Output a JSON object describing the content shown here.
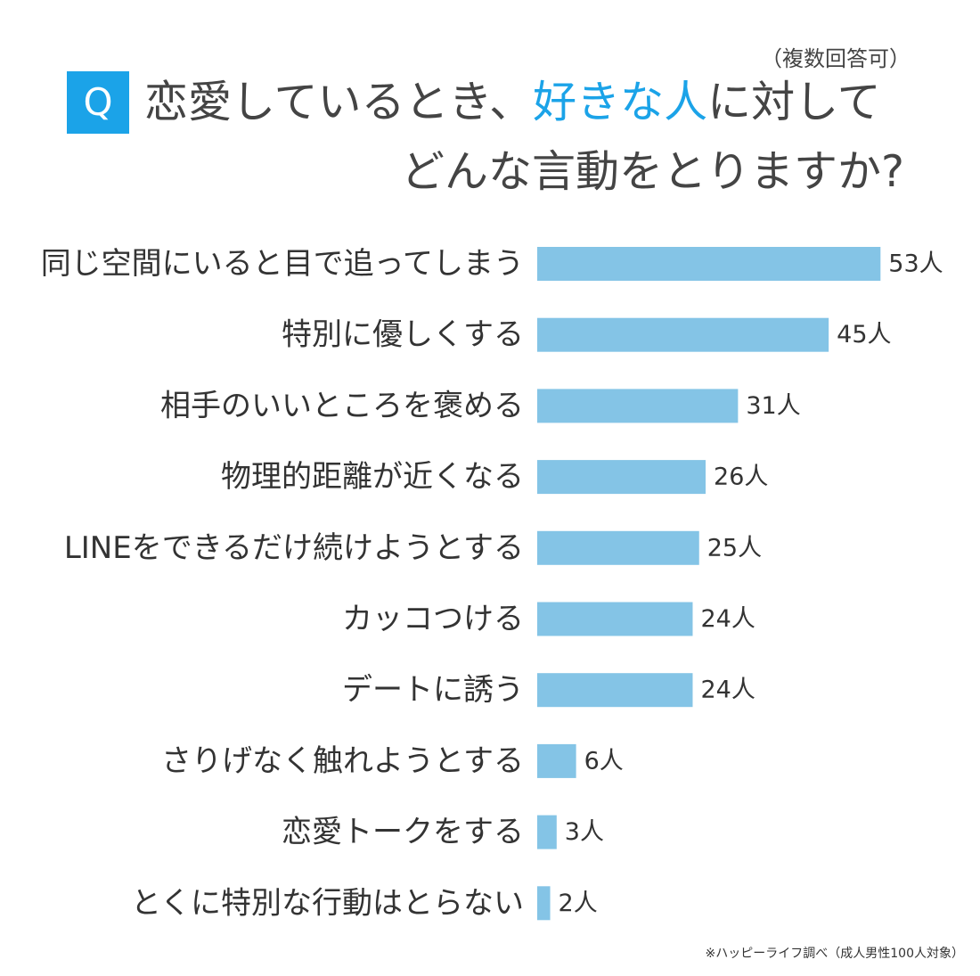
{
  "header": {
    "note": "（複数回答可）",
    "badge": "Q",
    "title_line1_pre": "恋愛しているとき、",
    "title_line1_highlight": "好きな人",
    "title_line1_post": "に対して",
    "title_line2": "どんな言動をとりますか?"
  },
  "colors": {
    "accent": "#1ba3e8",
    "bar": "#84c4e6",
    "text": "#333333"
  },
  "chart_data": {
    "type": "bar",
    "orientation": "horizontal",
    "unit": "人",
    "categories": [
      "同じ空間にいると目で追ってしまう",
      "特別に優しくする",
      "相手のいいところを褒める",
      "物理的距離が近くなる",
      "LINEをできるだけ続けようとする",
      "カッコつける",
      "デートに誘う",
      "さりげなく触れようとする",
      "恋愛トークをする",
      "とくに特別な行動はとらない"
    ],
    "values": [
      53,
      45,
      31,
      26,
      25,
      24,
      24,
      6,
      3,
      2
    ],
    "value_labels": [
      "53人",
      "45人",
      "31人",
      "26人",
      "25人",
      "24人",
      "24人",
      "6人",
      "3人",
      "2人"
    ]
  },
  "footer": {
    "source": "※ハッピーライフ調べ（成人男性100人対象）"
  }
}
